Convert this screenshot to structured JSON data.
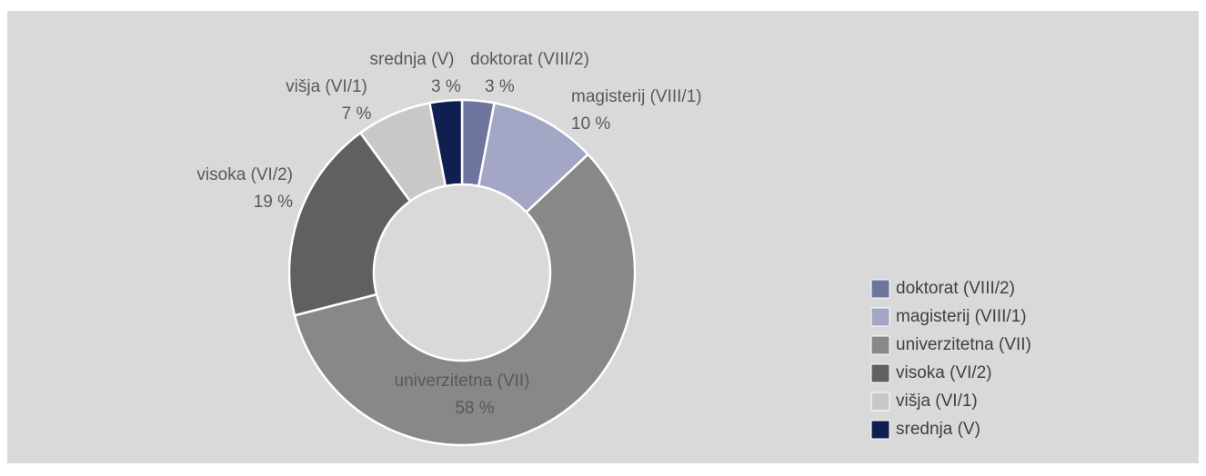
{
  "chart_data": {
    "type": "donut",
    "categories": [
      "doktorat (VIII/2)",
      "magisterij (VIII/1)",
      "univerzitetna (VII)",
      "visoka (VI/2)",
      "višja (VI/1)",
      "srednja (V)"
    ],
    "values": [
      3,
      10,
      58,
      19,
      7,
      3
    ],
    "value_labels": [
      "3 %",
      "10 %",
      "58 %",
      "19 %",
      "7 %",
      "3 %"
    ],
    "colors": [
      "#6f749e",
      "#a3a6c5",
      "#888888",
      "#606060",
      "#c8c8c8",
      "#0f2050"
    ],
    "legend": "right"
  }
}
